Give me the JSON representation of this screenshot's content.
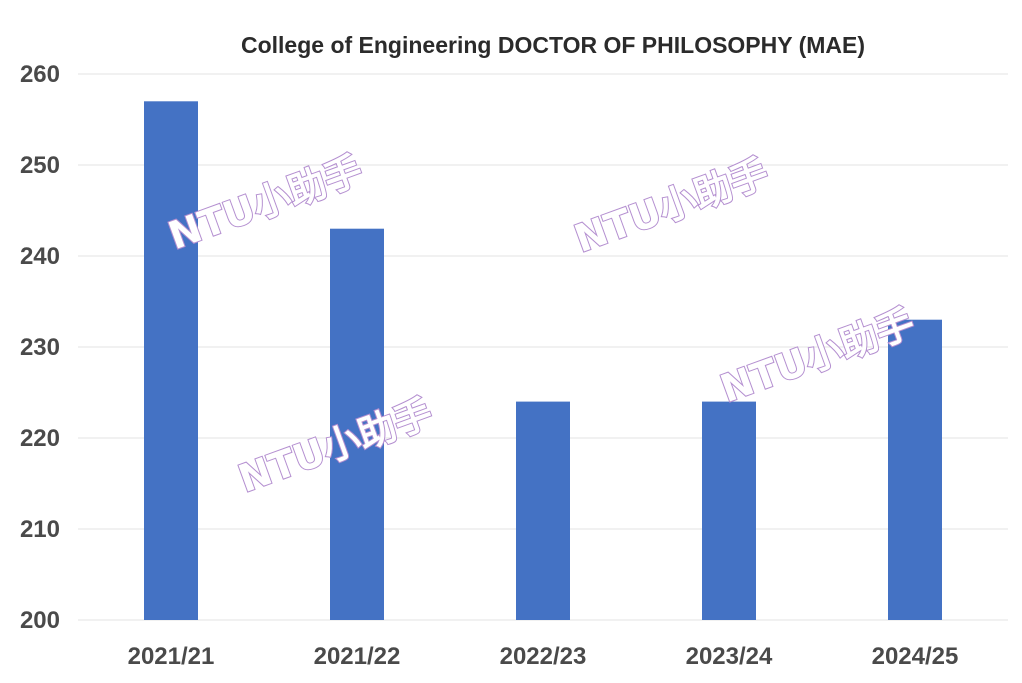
{
  "chart_data": {
    "type": "bar",
    "title": "College of Engineering DOCTOR OF PHILOSOPHY (MAE)",
    "categories": [
      "2021/21",
      "2021/22",
      "2022/23",
      "2023/24",
      "2024/25"
    ],
    "values": [
      257,
      243,
      224,
      224,
      233
    ],
    "ylim": [
      200,
      260
    ],
    "yticks": [
      "200",
      "210",
      "220",
      "230",
      "240",
      "250",
      "260"
    ],
    "xlabel": "",
    "ylabel": "",
    "grid": true,
    "legend": "none",
    "bar_color": "#4472c4",
    "grid_color": "#e3e3e3"
  },
  "watermark": {
    "text": "NTU小助手",
    "color": "#b48fd0"
  }
}
